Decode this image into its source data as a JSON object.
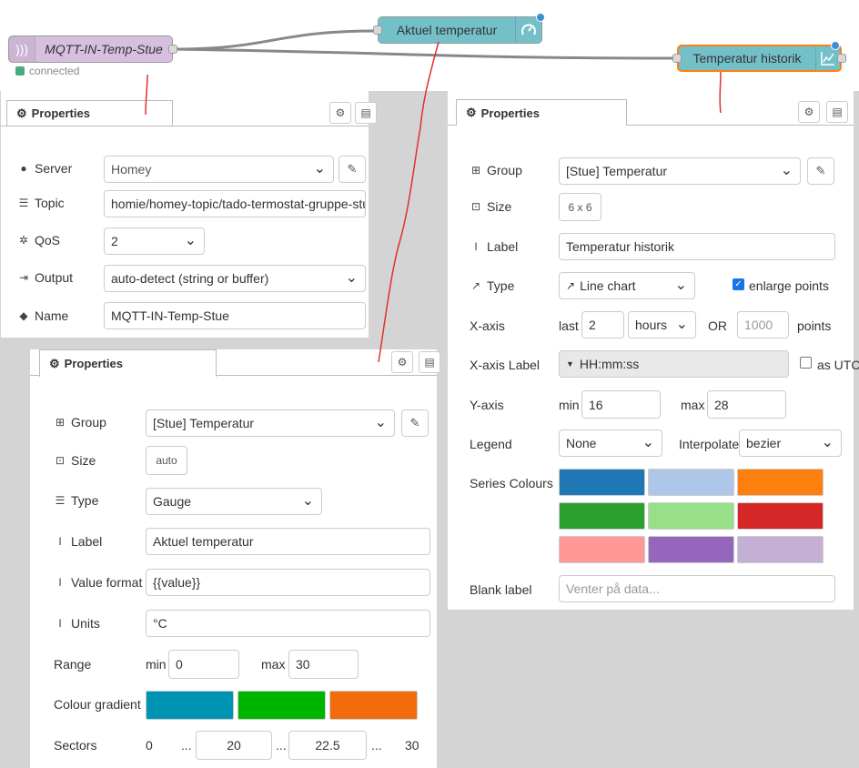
{
  "flow": {
    "mqtt_node": {
      "label": "MQTT-IN-Temp-Stue",
      "status": "connected",
      "icon": "radio-waves-icon",
      "color": "#d7bfe0",
      "status_color": "#4aaa7e"
    },
    "gauge_node": {
      "label": "Aktuel temperatur",
      "icon": "gauge-icon",
      "color": "#74c0c8"
    },
    "chart_node": {
      "label": "Temperatur historik",
      "icon": "line-chart-icon",
      "color": "#74c0c8"
    }
  },
  "mqtt_panel": {
    "tab_label": "Properties",
    "server_label": "Server",
    "server_value": "Homey",
    "topic_label": "Topic",
    "topic_value": "homie/homey-topic/tado-termostat-gruppe-stue/m",
    "qos_label": "QoS",
    "qos_value": "2",
    "output_label": "Output",
    "output_value": "auto-detect (string or buffer)",
    "name_label": "Name",
    "name_value": "MQTT-IN-Temp-Stue"
  },
  "gauge_panel": {
    "tab_label": "Properties",
    "group_label": "Group",
    "group_value": "[Stue] Temperatur",
    "size_label": "Size",
    "size_value": "auto",
    "type_label": "Type",
    "type_value": "Gauge",
    "label_label": "Label",
    "label_value": "Aktuel temperatur",
    "format_label": "Value format",
    "format_value": "{{value}}",
    "units_label": "Units",
    "units_value": "°C",
    "range_label": "Range",
    "min_label": "min",
    "min_value": "0",
    "max_label": "max",
    "max_value": "30",
    "gradient_label": "Colour gradient",
    "gradient_colors": [
      "#0094b4",
      "#00b500",
      "#f26b0c"
    ],
    "sectors_label": "Sectors",
    "sector_start": "0",
    "sector_ellipsis": "...",
    "sector_1": "20",
    "sector_2": "22.5",
    "sector_end": "30"
  },
  "chart_panel": {
    "tab_label": "Properties",
    "group_label": "Group",
    "group_value": "[Stue] Temperatur",
    "size_label": "Size",
    "size_value": "6 x 6",
    "label_label": "Label",
    "label_value": "Temperatur historik",
    "type_label": "Type",
    "type_value": "Line chart",
    "enlarge_label": "enlarge points",
    "xaxis_label": "X-axis",
    "last_label": "last",
    "last_value": "2",
    "unit_value": "hours",
    "or_label": "OR",
    "points_placeholder": "1000",
    "points_label": "points",
    "xaxis_label_label": "X-axis Label",
    "xaxis_label_value": "HH:mm:ss",
    "utc_label": "as UTC",
    "yaxis_label": "Y-axis",
    "ymin_label": "min",
    "ymin_value": "16",
    "ymax_label": "max",
    "ymax_value": "28",
    "legend_label": "Legend",
    "legend_value": "None",
    "interpolate_label": "Interpolate",
    "interpolate_value": "bezier",
    "series_label": "Series Colours",
    "series_colors": [
      "#1f77b4",
      "#aec7e8",
      "#ff7f0e",
      "#2ca02c",
      "#98df8a",
      "#d62728",
      "#ff9896",
      "#9467bd",
      "#c5b0d5"
    ],
    "blank_label": "Blank label",
    "blank_placeholder": "Venter på data..."
  }
}
